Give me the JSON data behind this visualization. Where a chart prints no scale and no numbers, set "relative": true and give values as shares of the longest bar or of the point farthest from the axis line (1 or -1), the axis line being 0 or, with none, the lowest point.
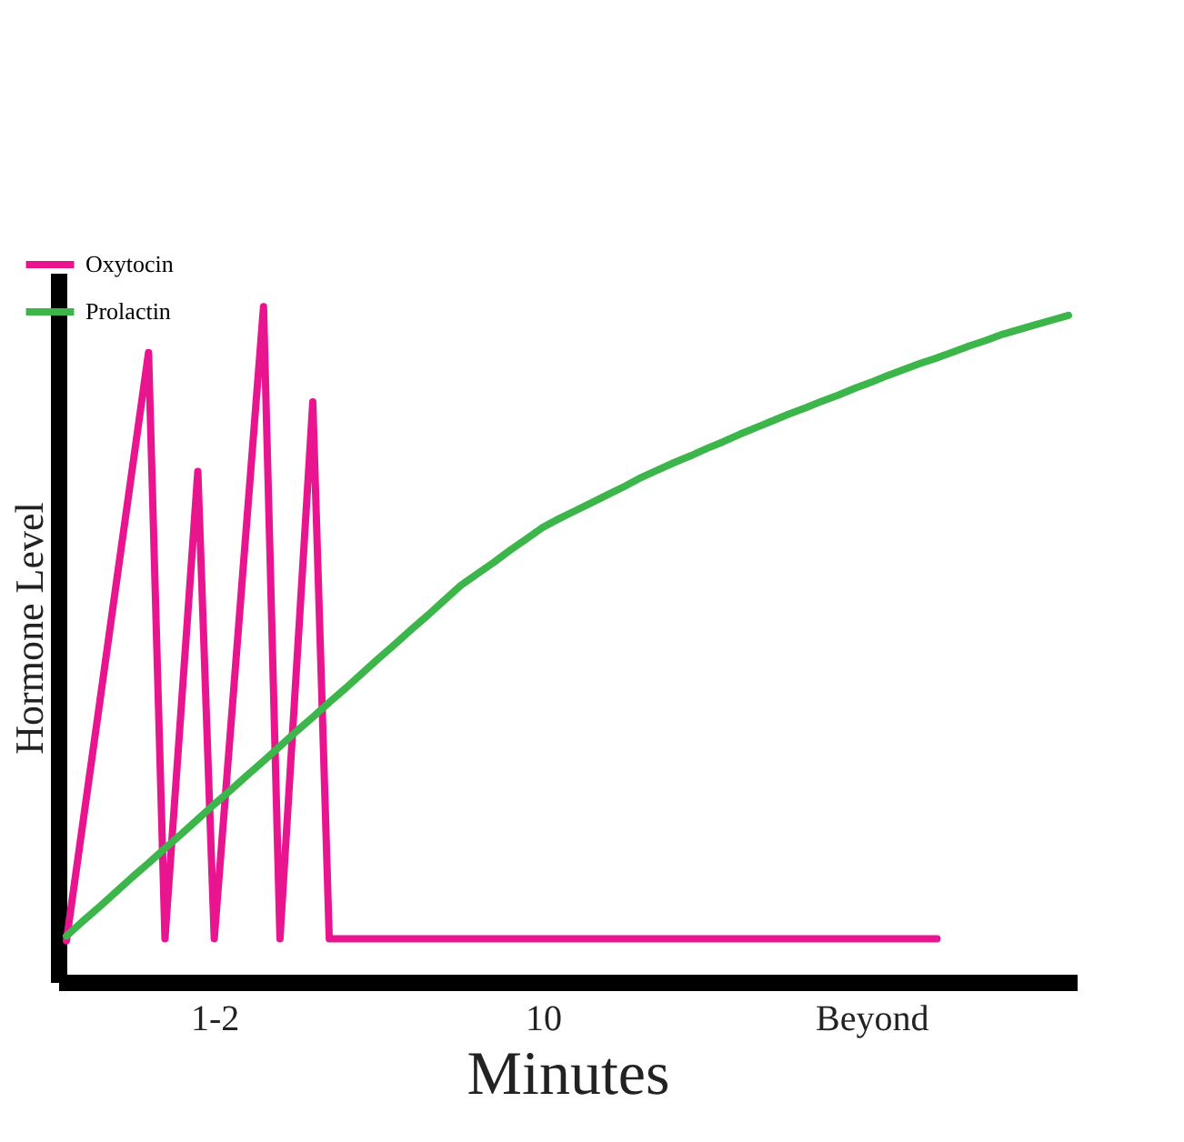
{
  "chart_data": {
    "type": "line",
    "relative": true,
    "xlabel": "Minutes",
    "ylabel": "Hormone Level",
    "categories": [
      null,
      null,
      null,
      null,
      null,
      null,
      null,
      null,
      null,
      "1-2",
      null,
      null,
      null,
      null,
      null,
      null,
      null,
      null,
      null,
      null,
      null,
      null,
      null,
      null,
      null,
      null,
      null,
      null,
      null,
      "10",
      null,
      null,
      null,
      null,
      null,
      null,
      null,
      null,
      null,
      null,
      null,
      null,
      null,
      null,
      null,
      null,
      null,
      null,
      null,
      "Beyond",
      null,
      null,
      null,
      null,
      null,
      null,
      null,
      null,
      null,
      null,
      null,
      null
    ],
    "legend": "top left",
    "grid": false,
    "marker": "none",
    "line_style": "solid",
    "series": [
      {
        "name": "Oxytocin",
        "color": "#e8158f",
        "values": [
          0.061,
          0.235,
          0.409,
          0.584,
          0.758,
          0.932,
          0.064,
          0.41,
          0.756,
          0.064,
          0.376,
          0.688,
          1,
          0.064,
          0.462,
          0.859,
          0.064,
          0.064,
          0.064,
          0.064,
          0.064,
          0.064,
          0.064,
          0.064,
          0.064,
          0.064,
          0.064,
          0.064,
          0.064,
          0.064,
          0.064,
          0.064,
          0.064,
          0.064,
          0.064,
          0.064,
          0.064,
          0.064,
          0.064,
          0.064,
          0.064,
          0.064,
          0.064,
          0.064,
          0.064,
          0.064,
          0.064,
          0.064,
          0.064,
          0.064,
          0.064,
          0.064,
          0.064,
          0.064,
          null,
          null,
          null,
          null,
          null,
          null,
          null,
          null
        ]
      },
      {
        "name": "Prolactin",
        "color": "#3cb54a",
        "values": [
          0.068,
          0.09,
          0.111,
          0.133,
          0.155,
          0.176,
          0.198,
          0.219,
          0.241,
          0.263,
          0.284,
          0.306,
          0.327,
          0.349,
          0.371,
          0.392,
          0.414,
          0.435,
          0.457,
          0.479,
          0.5,
          0.522,
          0.543,
          0.565,
          0.587,
          0.604,
          0.621,
          0.639,
          0.656,
          0.673,
          0.686,
          0.698,
          0.71,
          0.722,
          0.734,
          0.747,
          0.758,
          0.769,
          0.779,
          0.79,
          0.8,
          0.811,
          0.821,
          0.831,
          0.841,
          0.85,
          0.86,
          0.869,
          0.879,
          0.888,
          0.898,
          0.907,
          0.916,
          0.924,
          0.933,
          0.942,
          0.95,
          0.959,
          0.966,
          0.973,
          0.98,
          0.987
        ]
      }
    ]
  }
}
